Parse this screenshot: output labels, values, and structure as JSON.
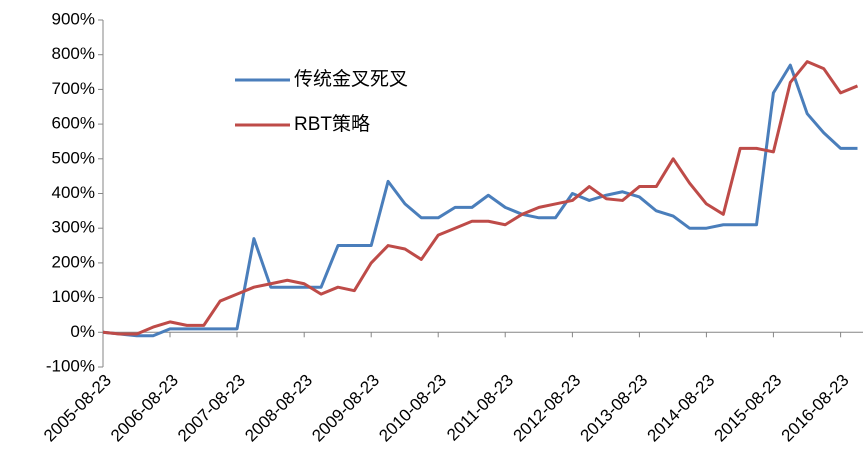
{
  "chart_data": {
    "type": "line",
    "x": [
      "2005-08-23",
      "2005-11-23",
      "2006-02-23",
      "2006-05-23",
      "2006-08-23",
      "2006-11-23",
      "2007-02-23",
      "2007-05-23",
      "2007-08-23",
      "2007-11-23",
      "2008-02-23",
      "2008-05-23",
      "2008-08-23",
      "2008-11-23",
      "2009-02-23",
      "2009-05-23",
      "2009-08-23",
      "2009-11-23",
      "2010-02-23",
      "2010-05-23",
      "2010-08-23",
      "2010-11-23",
      "2011-02-23",
      "2011-05-23",
      "2011-08-23",
      "2011-11-23",
      "2012-02-23",
      "2012-05-23",
      "2012-08-23",
      "2012-11-23",
      "2013-02-23",
      "2013-05-23",
      "2013-08-23",
      "2013-11-23",
      "2014-02-23",
      "2014-05-23",
      "2014-08-23",
      "2014-11-23",
      "2015-02-23",
      "2015-05-23",
      "2015-08-23",
      "2015-11-23",
      "2016-02-23",
      "2016-05-23",
      "2016-08-23",
      "2016-11-23"
    ],
    "series": [
      {
        "name": "传统金叉死叉",
        "color": "#4a7ebb",
        "values": [
          0,
          -5,
          -10,
          -10,
          10,
          10,
          10,
          10,
          10,
          270,
          130,
          130,
          130,
          130,
          250,
          250,
          250,
          435,
          370,
          330,
          330,
          360,
          360,
          395,
          360,
          340,
          330,
          330,
          400,
          380,
          395,
          405,
          390,
          350,
          335,
          300,
          300,
          310,
          310,
          310,
          690,
          770,
          630,
          575,
          530,
          530
        ]
      },
      {
        "name": "RBT策略",
        "color": "#be4b48",
        "values": [
          0,
          -5,
          -5,
          15,
          30,
          20,
          20,
          90,
          110,
          130,
          140,
          150,
          140,
          110,
          130,
          120,
          200,
          250,
          240,
          210,
          280,
          300,
          320,
          320,
          310,
          340,
          360,
          370,
          380,
          420,
          385,
          380,
          420,
          420,
          500,
          430,
          370,
          340,
          530,
          530,
          520,
          720,
          780,
          760,
          690,
          710
        ]
      }
    ],
    "xlim": [
      "2005-08-23",
      "2016-12-23"
    ],
    "xticks": [
      "2005-08-23",
      "2006-08-23",
      "2007-08-23",
      "2008-08-23",
      "2009-08-23",
      "2010-08-23",
      "2011-08-23",
      "2012-08-23",
      "2013-08-23",
      "2014-08-23",
      "2015-08-23",
      "2016-08-23"
    ],
    "ylim": [
      -100,
      900
    ],
    "yticks": [
      {
        "value": -100,
        "label": "-100%"
      },
      {
        "value": 0,
        "label": "0%"
      },
      {
        "value": 100,
        "label": "100%"
      },
      {
        "value": 200,
        "label": "200%"
      },
      {
        "value": 300,
        "label": "300%"
      },
      {
        "value": 400,
        "label": "400%"
      },
      {
        "value": 500,
        "label": "500%"
      },
      {
        "value": 600,
        "label": "600%"
      },
      {
        "value": 700,
        "label": "700%"
      },
      {
        "value": 800,
        "label": "800%"
      },
      {
        "value": 900,
        "label": "900%"
      }
    ],
    "legend": "upper left"
  }
}
